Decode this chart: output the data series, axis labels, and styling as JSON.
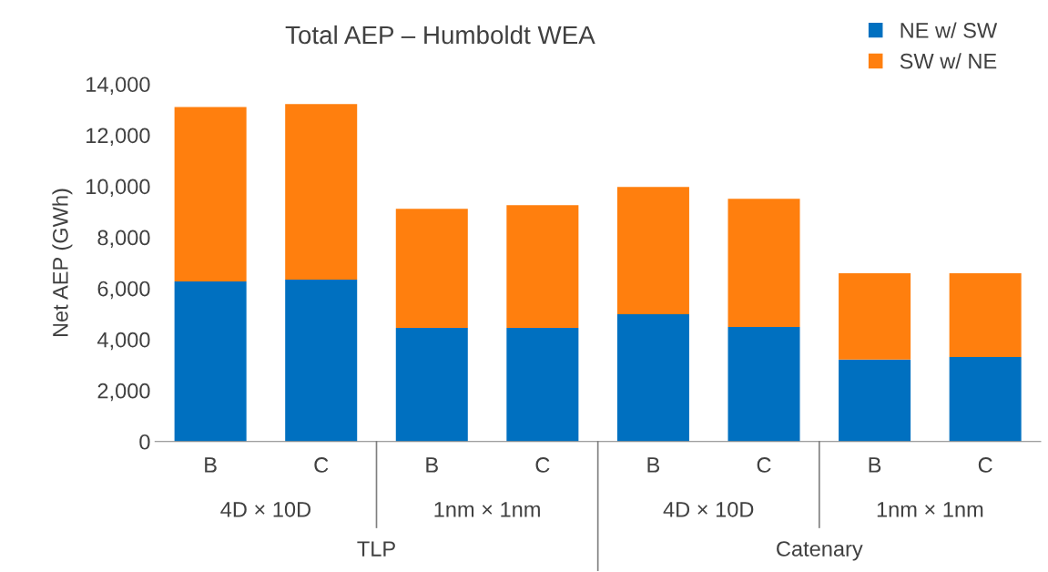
{
  "chart_data": {
    "type": "bar",
    "title": "Total AEP – Humboldt WEA",
    "ylabel": "Net AEP (GWh)",
    "categories": [
      "B",
      "C",
      "B",
      "C",
      "B",
      "C",
      "B",
      "C"
    ],
    "annotations": [
      "4D × 10D",
      "1nm × 1nm",
      "4D × 10D",
      "1nm × 1nm",
      "TLP",
      "Catenary"
    ],
    "stacked": true,
    "series": [
      {
        "name": "NE w/ SW",
        "color": "#0070c0",
        "values": [
          6270,
          6340,
          4450,
          4450,
          4990,
          4490,
          3210,
          3310
        ]
      },
      {
        "name": "SW w/ NE",
        "color": "#ff7f0e",
        "values": [
          6830,
          6880,
          4670,
          4810,
          4985,
          5020,
          3380,
          3280
        ]
      }
    ],
    "ylim": [
      0,
      14000
    ],
    "yticks": [
      {
        "value": 0,
        "label": "0"
      },
      {
        "value": 2000,
        "label": "2,000"
      },
      {
        "value": 4000,
        "label": "4,000"
      },
      {
        "value": 6000,
        "label": "6,000"
      },
      {
        "value": 8000,
        "label": "8,000"
      },
      {
        "value": 10000,
        "label": "10,000"
      },
      {
        "value": 12000,
        "label": "12,000"
      },
      {
        "value": 14000,
        "label": "14,000"
      }
    ],
    "grid": false,
    "legend": "top right"
  }
}
